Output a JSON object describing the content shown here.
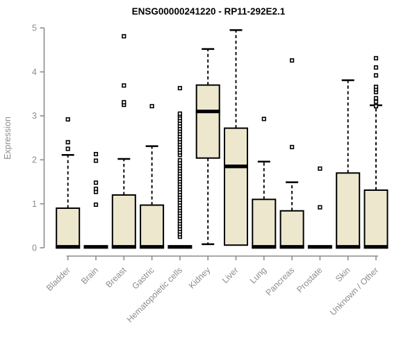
{
  "colors": {
    "box_fill": "#EDE7CE",
    "box_border": "#000000",
    "median": "#000000",
    "whisker": "#000000",
    "axis": "#8C8C8C",
    "text_gray": "#8C8C8C",
    "title": "#000000",
    "background": "#FFFFFF"
  },
  "chart_data": {
    "type": "boxplot",
    "title": "ENSG00000241220 - RP11-292E2.1",
    "xlabel": "",
    "ylabel": "Expression",
    "ylim": [
      0,
      5
    ],
    "yticks": [
      0,
      1,
      2,
      3,
      4,
      5
    ],
    "grid": false,
    "legend": "none",
    "categories": [
      "Bladder",
      "Brain",
      "Breast",
      "Gastric",
      "Hematopoietic cells",
      "Kidney",
      "Liver",
      "Lung",
      "Pancreas",
      "Prostate",
      "Skin",
      "Unknown / Other"
    ],
    "series": [
      {
        "name": "Bladder",
        "q1": 0,
        "median": 0.02,
        "q3": 0.9,
        "whisker_low": 0,
        "whisker_high": 2.11,
        "outliers": [
          2.25,
          2.4,
          2.92
        ]
      },
      {
        "name": "Brain",
        "q1": 0,
        "median": 0.02,
        "q3": 0.03,
        "whisker_low": 0,
        "whisker_high": 0.03,
        "outliers": [
          0.98,
          1.27,
          1.34,
          1.48,
          1.98,
          2.13
        ]
      },
      {
        "name": "Breast",
        "q1": 0,
        "median": 0.02,
        "q3": 1.2,
        "whisker_low": 0,
        "whisker_high": 2.02,
        "outliers": [
          3.25,
          3.31,
          3.69,
          4.81
        ]
      },
      {
        "name": "Gastric",
        "q1": 0,
        "median": 0.02,
        "q3": 0.97,
        "whisker_low": 0,
        "whisker_high": 2.31,
        "outliers": [
          3.22
        ]
      },
      {
        "name": "Hematopoietic cells",
        "q1": 0,
        "median": 0.02,
        "q3": 0.03,
        "whisker_low": 0,
        "whisker_high": 0.03,
        "outliers": [
          0.25,
          0.31,
          0.37,
          0.43,
          0.49,
          0.55,
          0.61,
          0.67,
          0.73,
          0.79,
          0.85,
          0.91,
          0.97,
          1.03,
          1.09,
          1.15,
          1.21,
          1.27,
          1.33,
          1.39,
          1.45,
          1.51,
          1.57,
          1.63,
          1.69,
          1.75,
          1.81,
          1.87,
          1.93,
          1.99,
          2.11,
          2.17,
          2.23,
          2.29,
          2.35,
          2.41,
          2.47,
          2.53,
          2.59,
          2.65,
          2.71,
          2.77,
          2.83,
          2.89,
          2.95,
          3.01,
          3.05,
          3.63
        ]
      },
      {
        "name": "Kidney",
        "q1": 2.04,
        "median": 3.1,
        "q3": 3.7,
        "whisker_low": 0.08,
        "whisker_high": 4.52,
        "outliers": []
      },
      {
        "name": "Liver",
        "q1": 0.06,
        "median": 1.85,
        "q3": 2.72,
        "whisker_low": 0.06,
        "whisker_high": 4.95,
        "outliers": []
      },
      {
        "name": "Lung",
        "q1": 0,
        "median": 0.02,
        "q3": 1.1,
        "whisker_low": 0,
        "whisker_high": 1.96,
        "outliers": [
          2.93
        ]
      },
      {
        "name": "Pancreas",
        "q1": 0,
        "median": 0.02,
        "q3": 0.84,
        "whisker_low": 0,
        "whisker_high": 1.49,
        "outliers": [
          2.29,
          4.26
        ]
      },
      {
        "name": "Prostate",
        "q1": 0,
        "median": 0.02,
        "q3": 0.03,
        "whisker_low": 0,
        "whisker_high": 0.03,
        "outliers": [
          0.92,
          1.8
        ]
      },
      {
        "name": "Skin",
        "q1": 0,
        "median": 0.02,
        "q3": 1.7,
        "whisker_low": 0,
        "whisker_high": 3.81,
        "outliers": []
      },
      {
        "name": "Unknown / Other",
        "q1": 0,
        "median": 0.02,
        "q3": 1.31,
        "whisker_low": 0,
        "whisker_high": 3.24,
        "outliers": [
          3.22,
          3.32,
          3.4,
          3.54,
          3.6,
          3.66,
          3.92,
          4.1,
          4.31
        ]
      }
    ]
  }
}
